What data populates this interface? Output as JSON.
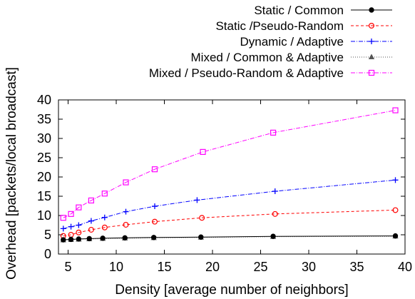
{
  "chart_data": {
    "type": "line",
    "title": "",
    "xlabel": "Density [average number of neighbors]",
    "ylabel": "Overhead [packets/local broadcast]",
    "xlim": [
      4,
      40
    ],
    "ylim": [
      0,
      40
    ],
    "xticks": [
      5,
      10,
      15,
      20,
      25,
      30,
      35,
      40
    ],
    "yticks": [
      0,
      5,
      10,
      15,
      20,
      25,
      30,
      35,
      40
    ],
    "grid": false,
    "legend_position": "top-right",
    "series": [
      {
        "name": "Static / Common",
        "color": "#000000",
        "dash": "solid",
        "marker": "filled-circle",
        "x": [
          4.5,
          5.3,
          6.1,
          7.2,
          8.6,
          10.9,
          13.9,
          18.8,
          26.3,
          39.0
        ],
        "y": [
          3.7,
          3.8,
          3.9,
          4.0,
          4.1,
          4.2,
          4.3,
          4.4,
          4.6,
          4.7
        ]
      },
      {
        "name": "Static /Pseudo-Random",
        "color": "#ff0000",
        "dash": "dashed",
        "marker": "open-circle",
        "x": [
          4.5,
          5.3,
          6.1,
          7.4,
          8.8,
          11.0,
          14.0,
          18.9,
          26.5,
          39.0
        ],
        "y": [
          4.7,
          5.0,
          5.6,
          6.3,
          6.9,
          7.6,
          8.4,
          9.4,
          10.4,
          11.4
        ]
      },
      {
        "name": "Dynamic / Adaptive",
        "color": "#0000ff",
        "dash": "dashdot",
        "marker": "plus",
        "x": [
          4.5,
          5.3,
          6.1,
          7.4,
          8.8,
          11.0,
          14.0,
          18.4,
          26.5,
          39.0
        ],
        "y": [
          6.6,
          7.1,
          7.5,
          8.6,
          9.5,
          11.0,
          12.4,
          14.0,
          16.3,
          19.2
        ]
      },
      {
        "name": "Mixed / Common & Adaptive",
        "color": "#555555",
        "dash": "dotted",
        "marker": "triangle",
        "x": [
          4.5,
          5.3,
          6.1,
          7.2,
          8.6,
          10.9,
          13.9,
          18.8,
          26.3,
          39.0
        ],
        "y": [
          3.6,
          3.7,
          3.8,
          3.9,
          4.0,
          4.1,
          4.2,
          4.3,
          4.5,
          4.6
        ]
      },
      {
        "name": "Mixed / Pseudo-Random & Adaptive",
        "color": "#ff00ff",
        "dash": "dashdot",
        "marker": "open-square",
        "x": [
          4.5,
          5.3,
          6.1,
          7.4,
          8.8,
          11.0,
          14.0,
          19.0,
          26.3,
          39.0
        ],
        "y": [
          9.4,
          10.4,
          12.1,
          13.9,
          15.7,
          18.6,
          22.0,
          26.5,
          31.5,
          37.3
        ]
      }
    ]
  }
}
